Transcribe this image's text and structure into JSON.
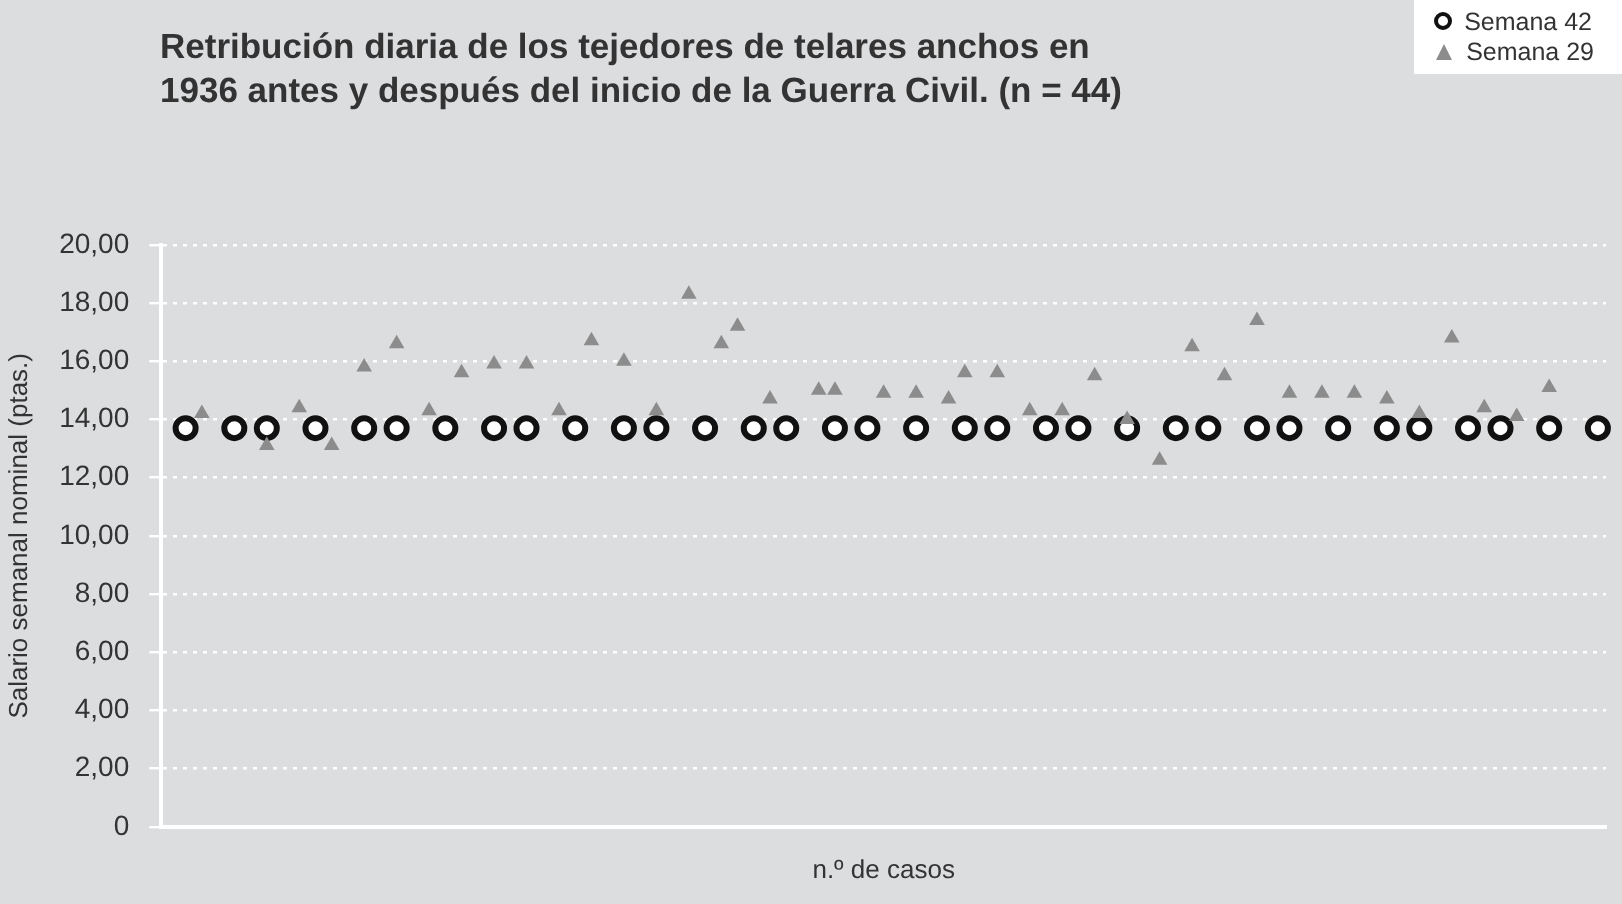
{
  "chart_data": {
    "type": "scatter",
    "title": "Retribución diaria de los tejedores de telares anchos en 1936 antes y después del inicio de la Guerra Civil. (n = 44)",
    "xlabel": "n.º de casos",
    "ylabel": "Salario semanal nominal (ptas.)",
    "categories": [
      null,
      null,
      null,
      null,
      null,
      null,
      null,
      null,
      null,
      null,
      null,
      null,
      null,
      null,
      null,
      null,
      null,
      null,
      null,
      null,
      null,
      null,
      null,
      null,
      null,
      null,
      null,
      null,
      null,
      null,
      null,
      null,
      null,
      null,
      null,
      null,
      null,
      null,
      null,
      null,
      null,
      null,
      null,
      null,
      null,
      null,
      null,
      null,
      null,
      null,
      null,
      null,
      null,
      null,
      null,
      null,
      null,
      null,
      null,
      null,
      null,
      null,
      null,
      null,
      null,
      null,
      null,
      null,
      null,
      null,
      null,
      null,
      null,
      null,
      null,
      null,
      null,
      null,
      null,
      null,
      null,
      null,
      null,
      null,
      null,
      null,
      null,
      null,
      null
    ],
    "ylim": [
      0,
      20
    ],
    "yticks": [
      {
        "value": 0,
        "label": "0"
      },
      {
        "value": 2,
        "label": "2,00"
      },
      {
        "value": 4,
        "label": "4,00"
      },
      {
        "value": 6,
        "label": "6,00"
      },
      {
        "value": 8,
        "label": "8,00"
      },
      {
        "value": 10,
        "label": "10,00"
      },
      {
        "value": 12,
        "label": "12,00"
      },
      {
        "value": 14,
        "label": "14,00"
      },
      {
        "value": 16,
        "label": "16,00"
      },
      {
        "value": 18,
        "label": "18,00"
      },
      {
        "value": 20,
        "label": "20,00"
      }
    ],
    "tick_labels": "y",
    "grid": "y",
    "legend": "top right",
    "series": [
      {
        "name": "Semana 42",
        "color": "#111111",
        "marker": "circle",
        "values": [
          null,
          13.7,
          null,
          null,
          13.7,
          null,
          13.7,
          null,
          null,
          13.7,
          null,
          null,
          13.7,
          null,
          13.7,
          null,
          null,
          13.7,
          null,
          null,
          13.7,
          null,
          13.7,
          null,
          null,
          13.7,
          null,
          null,
          13.7,
          null,
          13.7,
          null,
          null,
          13.7,
          null,
          null,
          13.7,
          null,
          13.7,
          null,
          null,
          13.7,
          null,
          13.7,
          null,
          null,
          13.7,
          null,
          null,
          13.7,
          null,
          13.7,
          null,
          null,
          13.7,
          null,
          13.7,
          null,
          null,
          13.7,
          null,
          null,
          13.7,
          null,
          13.7,
          null,
          null,
          13.7,
          null,
          13.7,
          null,
          null,
          13.7,
          null,
          null,
          13.7,
          null,
          13.7,
          null,
          null,
          13.7,
          null,
          13.7,
          null,
          null,
          13.7,
          null,
          null,
          13.7
        ]
      },
      {
        "name": "Semana 29",
        "color": "#8c8c8c",
        "marker": "triangle",
        "values": [
          null,
          null,
          14.2,
          null,
          null,
          null,
          13.1,
          null,
          14.4,
          null,
          13.1,
          null,
          15.8,
          null,
          16.6,
          null,
          14.3,
          null,
          15.6,
          null,
          15.9,
          null,
          15.9,
          null,
          14.3,
          null,
          16.7,
          null,
          16.0,
          null,
          14.3,
          null,
          18.3,
          null,
          16.6,
          17.2,
          null,
          14.7,
          null,
          null,
          15.0,
          15.0,
          null,
          null,
          14.9,
          null,
          14.9,
          null,
          14.7,
          15.6,
          null,
          15.6,
          null,
          14.3,
          null,
          14.3,
          null,
          15.5,
          null,
          14.0,
          null,
          12.6,
          null,
          16.5,
          null,
          15.5,
          null,
          17.4,
          null,
          14.9,
          null,
          14.9,
          null,
          14.9,
          null,
          14.7,
          null,
          14.2,
          null,
          16.8,
          null,
          14.4,
          null,
          14.1,
          null,
          15.1,
          null,
          null,
          null
        ]
      }
    ]
  }
}
